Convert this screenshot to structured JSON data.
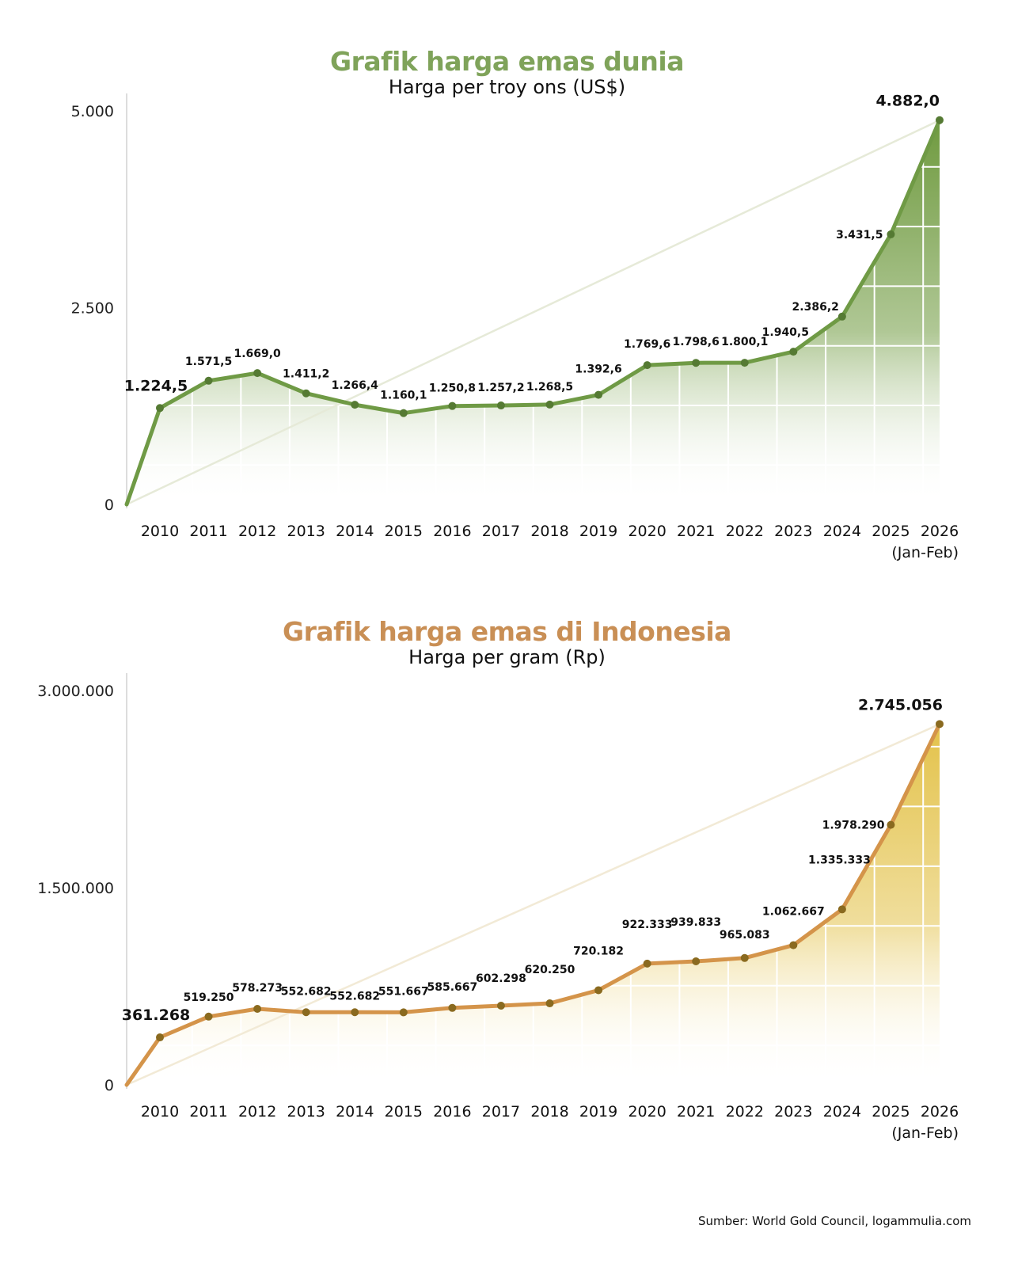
{
  "chart_data": [
    {
      "type": "area",
      "title": "Grafik harga emas dunia",
      "subtitle": "Harga per troy ons (US$)",
      "ylabel": "",
      "xlabel": "",
      "ylim": [
        0,
        5000
      ],
      "y_ticks": [
        "0",
        "2.500",
        "5.000"
      ],
      "y_tick_values": [
        0,
        2500,
        5000
      ],
      "categories": [
        "2010",
        "2011",
        "2012",
        "2013",
        "2014",
        "2015",
        "2016",
        "2017",
        "2018",
        "2019",
        "2020",
        "2021",
        "2022",
        "2023",
        "2024",
        "2025",
        "2026"
      ],
      "category_note": "(Jan-Feb)",
      "values": [
        1224.5,
        1571.5,
        1669.0,
        1411.2,
        1266.4,
        1160.1,
        1250.8,
        1257.2,
        1268.5,
        1392.6,
        1769.6,
        1798.6,
        1800.1,
        1940.5,
        2386.2,
        3431.5,
        4882.0
      ],
      "labels": [
        "1.224,5",
        "1.571,5",
        "1.669,0",
        "1.411,2",
        "1.266,4",
        "1.160,1",
        "1.250,8",
        "1.257,2",
        "1.268,5",
        "1.392,6",
        "1.769,6",
        "1.798,6",
        "1.800,1",
        "1.940,5",
        "2.386,2",
        "3.431,5",
        "4.882,0"
      ],
      "colors": {
        "title": "#7fa35a",
        "line": "#6f9a45",
        "dot": "#557a33",
        "fill_top": "#6f9a3f",
        "fill_bottom": "#ffffff",
        "trend": "#e6ead8"
      },
      "grid": true
    },
    {
      "type": "area",
      "title": "Grafik harga emas di Indonesia",
      "subtitle": "Harga per gram (Rp)",
      "ylabel": "",
      "xlabel": "",
      "ylim": [
        0,
        3000000
      ],
      "y_ticks": [
        "0",
        "1.500.000",
        "3.000.000"
      ],
      "y_tick_values": [
        0,
        1500000,
        3000000
      ],
      "categories": [
        "2010",
        "2011",
        "2012",
        "2013",
        "2014",
        "2015",
        "2016",
        "2017",
        "2018",
        "2019",
        "2020",
        "2021",
        "2022",
        "2023",
        "2024",
        "2025",
        "2026"
      ],
      "category_note": "(Jan-Feb)",
      "values": [
        361268,
        519250,
        578273,
        552682,
        552682,
        551667,
        585667,
        602298,
        620250,
        720182,
        922333,
        939833,
        965083,
        1062667,
        1335333,
        1978290,
        2745056
      ],
      "labels": [
        "361.268",
        "519.250",
        "578.273",
        "552.682",
        "552.682",
        "551.667",
        "585.667",
        "602.298",
        "620.250",
        "720.182",
        "922.333",
        "939.833",
        "965.083",
        "1.062.667",
        "1.335.333",
        "1.978.290",
        "2.745.056"
      ],
      "colors": {
        "title": "#c98f55",
        "line": "#d4944a",
        "dot": "#8a6a1f",
        "fill_top": "#e3c24a",
        "fill_bottom": "#ffffff",
        "trend": "#f2ead6"
      },
      "grid": true
    }
  ],
  "source": "Sumber: World Gold Council, logammulia.com"
}
